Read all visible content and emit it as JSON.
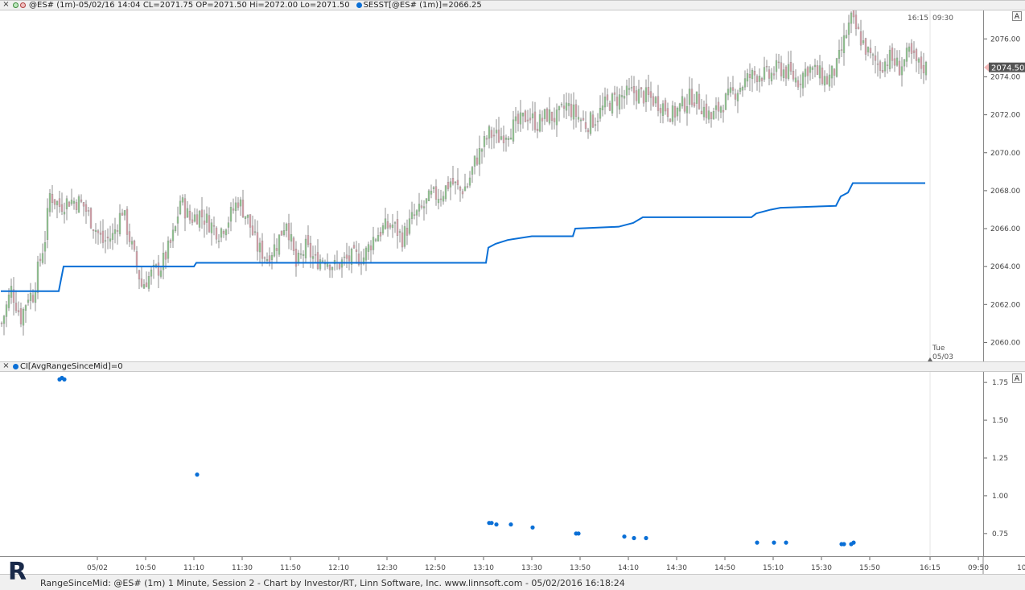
{
  "header_main": {
    "symbol_info": "@ES# (1m)-05/02/16 14:04 CL=2071.75 OP=2071.50 Hi=2072.00 Lo=2071.50",
    "study_info": "SESST[@ES# (1m)]=2066.25",
    "close_label": "×",
    "study_color": "#0a6fd6"
  },
  "header_sub": {
    "study_info": "CI[AvgRangeSinceMid]=0",
    "close_label": "×"
  },
  "autoscale_label": "A",
  "footer": {
    "text": "RangeSinceMid: @ES# (1m) 1 Minute, Session 2 - Chart by Investor/RT, Linn Software, Inc. www.linnsoft.com - 05/02/2016 16:18:24"
  },
  "session_marker": {
    "left_time": "16:15",
    "right_time": "09:30",
    "day": "Tue",
    "date": "05/03"
  },
  "colors": {
    "up": "#8fc48f",
    "down": "#d6a0a8",
    "wick": "#777777",
    "sesst": "#0a6fd6",
    "price_label_bg": "#555555"
  },
  "chart_data": [
    {
      "type": "candlestick",
      "name": "@ES# (1m)",
      "ylim": [
        2059.0,
        2077.5
      ],
      "yticks": [
        "2060.00",
        "2062.00",
        "2064.00",
        "2066.00",
        "2068.00",
        "2070.00",
        "2072.00",
        "2074.00",
        "2076.00"
      ],
      "ytick_values": [
        2060,
        2062,
        2064,
        2066,
        2068,
        2070,
        2072,
        2074,
        2076
      ],
      "last_price_label": "2074.50",
      "close_path": [
        [
          0,
          2061.0
        ],
        [
          4,
          2062.8
        ],
        [
          8,
          2061.3
        ],
        [
          11,
          2062.5
        ],
        [
          13,
          2062.5
        ],
        [
          15,
          2063.8
        ],
        [
          18,
          2065.5
        ],
        [
          20,
          2067.8
        ],
        [
          24,
          2067.2
        ],
        [
          28,
          2067.5
        ],
        [
          32,
          2067.4
        ],
        [
          34,
          2067.2
        ],
        [
          38,
          2066.2
        ],
        [
          42,
          2065.3
        ],
        [
          46,
          2065.6
        ],
        [
          50,
          2067.0
        ],
        [
          54,
          2065.0
        ],
        [
          58,
          2063.0
        ],
        [
          62,
          2063.6
        ],
        [
          66,
          2064.0
        ],
        [
          70,
          2065.2
        ],
        [
          72,
          2066.0
        ],
        [
          74,
          2067.5
        ],
        [
          78,
          2066.5
        ],
        [
          82,
          2066.8
        ],
        [
          86,
          2066.3
        ],
        [
          90,
          2065.8
        ],
        [
          94,
          2066.5
        ],
        [
          98,
          2067.5
        ],
        [
          102,
          2066.5
        ],
        [
          106,
          2065.0
        ],
        [
          110,
          2064.5
        ],
        [
          114,
          2065.2
        ],
        [
          118,
          2066.5
        ],
        [
          122,
          2064.0
        ],
        [
          126,
          2065.0
        ],
        [
          130,
          2064.3
        ],
        [
          134,
          2064.5
        ],
        [
          138,
          2064.0
        ],
        [
          142,
          2064.3
        ],
        [
          146,
          2064.5
        ],
        [
          150,
          2064.5
        ],
        [
          154,
          2065.5
        ],
        [
          158,
          2066.0
        ],
        [
          162,
          2066.2
        ],
        [
          166,
          2065.5
        ],
        [
          170,
          2066.5
        ],
        [
          174,
          2067.0
        ],
        [
          178,
          2067.7
        ],
        [
          182,
          2067.8
        ],
        [
          186,
          2068.5
        ],
        [
          190,
          2068.0
        ],
        [
          193,
          2068.3
        ],
        [
          196,
          2069.5
        ],
        [
          198,
          2070.0
        ],
        [
          202,
          2071.0
        ],
        [
          206,
          2070.8
        ],
        [
          210,
          2071.2
        ],
        [
          214,
          2071.5
        ],
        [
          218,
          2072.0
        ],
        [
          222,
          2071.5
        ],
        [
          226,
          2072.0
        ],
        [
          230,
          2071.8
        ],
        [
          234,
          2072.5
        ],
        [
          238,
          2072.0
        ],
        [
          242,
          2071.5
        ],
        [
          246,
          2071.8
        ],
        [
          250,
          2072.5
        ],
        [
          254,
          2072.8
        ],
        [
          258,
          2073.0
        ],
        [
          262,
          2073.2
        ],
        [
          266,
          2073.0
        ],
        [
          270,
          2072.8
        ],
        [
          274,
          2072.5
        ],
        [
          278,
          2072.0
        ],
        [
          282,
          2072.5
        ],
        [
          286,
          2073.0
        ],
        [
          290,
          2072.5
        ],
        [
          294,
          2071.8
        ],
        [
          298,
          2072.5
        ],
        [
          302,
          2073.0
        ],
        [
          306,
          2073.5
        ],
        [
          310,
          2074.0
        ],
        [
          314,
          2074.2
        ],
        [
          318,
          2074.0
        ],
        [
          322,
          2074.5
        ],
        [
          326,
          2074.2
        ],
        [
          330,
          2073.8
        ],
        [
          334,
          2074.5
        ],
        [
          338,
          2074.2
        ],
        [
          342,
          2073.8
        ],
        [
          346,
          2074.5
        ],
        [
          350,
          2076.3
        ],
        [
          352,
          2077.0
        ],
        [
          356,
          2076.0
        ],
        [
          360,
          2075.0
        ],
        [
          364,
          2074.6
        ],
        [
          368,
          2075.0
        ],
        [
          372,
          2074.5
        ],
        [
          376,
          2075.2
        ],
        [
          380,
          2074.6
        ],
        [
          383,
          2074.5
        ]
      ]
    },
    {
      "type": "line",
      "name": "SESST",
      "series": [
        [
          0,
          2062.7
        ],
        [
          24,
          2062.7
        ],
        [
          26,
          2064.0
        ],
        [
          80,
          2064.0
        ],
        [
          81,
          2064.2
        ],
        [
          201,
          2064.2
        ],
        [
          202,
          2065.0
        ],
        [
          205,
          2065.2
        ],
        [
          210,
          2065.4
        ],
        [
          220,
          2065.6
        ],
        [
          237,
          2065.6
        ],
        [
          238,
          2066.0
        ],
        [
          256,
          2066.1
        ],
        [
          262,
          2066.3
        ],
        [
          266,
          2066.6
        ],
        [
          311,
          2066.6
        ],
        [
          313,
          2066.8
        ],
        [
          319,
          2067.0
        ],
        [
          323,
          2067.1
        ],
        [
          346,
          2067.2
        ],
        [
          348,
          2067.7
        ],
        [
          351,
          2067.9
        ],
        [
          353,
          2068.4
        ],
        [
          383,
          2068.4
        ]
      ]
    },
    {
      "type": "scatter",
      "name": "CI[AvgRangeSinceMid]",
      "ylim": [
        0.6,
        1.82
      ],
      "yticks": [
        "1.75",
        "1.50",
        "1.25",
        "1.00",
        "0.75"
      ],
      "ytick_values": [
        1.75,
        1.5,
        1.25,
        1.0,
        0.75
      ],
      "points": [
        [
          24,
          1.77
        ],
        [
          25,
          1.78
        ],
        [
          26,
          1.77
        ],
        [
          81,
          1.14
        ],
        [
          202,
          0.82
        ],
        [
          203,
          0.82
        ],
        [
          205,
          0.81
        ],
        [
          211,
          0.81
        ],
        [
          220,
          0.79
        ],
        [
          238,
          0.75
        ],
        [
          239,
          0.75
        ],
        [
          258,
          0.73
        ],
        [
          262,
          0.72
        ],
        [
          267,
          0.72
        ],
        [
          313,
          0.69
        ],
        [
          320,
          0.69
        ],
        [
          325,
          0.69
        ],
        [
          348,
          0.68
        ],
        [
          349,
          0.68
        ],
        [
          352,
          0.68
        ],
        [
          353,
          0.69
        ]
      ]
    }
  ],
  "xaxis": {
    "ticks": [
      "05/02",
      "10:50",
      "11:10",
      "11:30",
      "11:50",
      "12:10",
      "12:30",
      "12:50",
      "13:10",
      "13:30",
      "13:50",
      "14:10",
      "14:30",
      "14:50",
      "15:10",
      "15:30",
      "15:50",
      "16:15",
      "09:50"
    ],
    "tick_bars": [
      40,
      60,
      80,
      100,
      120,
      140,
      160,
      180,
      200,
      220,
      240,
      260,
      280,
      300,
      320,
      340,
      360,
      385,
      405
    ],
    "right_label": "10"
  }
}
